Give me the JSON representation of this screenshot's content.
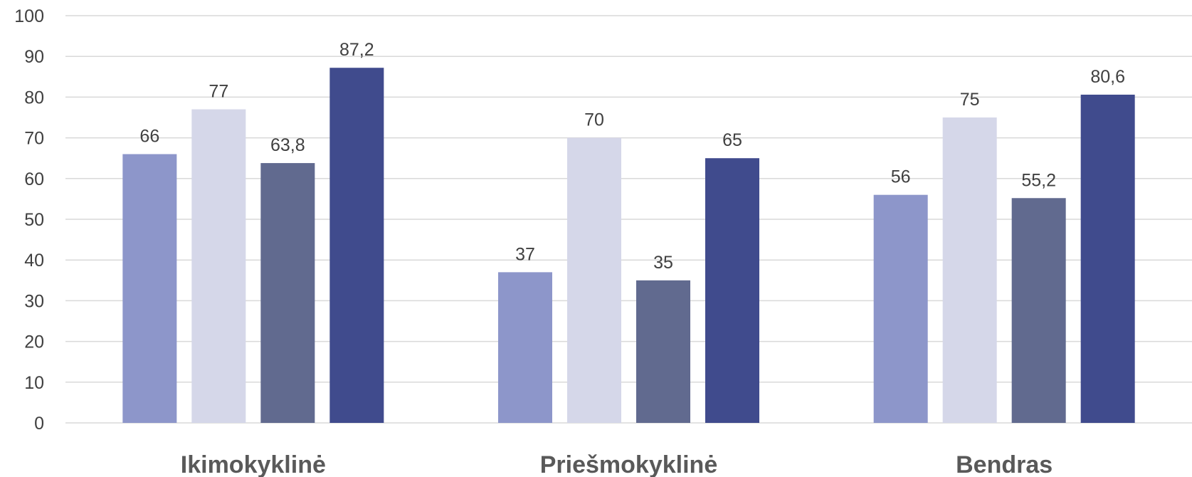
{
  "chart_data": {
    "type": "bar",
    "categories": [
      "Ikimokyklinė",
      "Priešmokyklinė",
      "Bendras"
    ],
    "series": [
      {
        "values": [
          66,
          37,
          56
        ],
        "labels": [
          "66",
          "37",
          "56"
        ],
        "color": "#8d96ca"
      },
      {
        "values": [
          77,
          70,
          75
        ],
        "labels": [
          "77",
          "70",
          "75"
        ],
        "color": "#d5d7e9"
      },
      {
        "values": [
          63.8,
          35,
          55.2
        ],
        "labels": [
          "63,8",
          "35",
          "55,2"
        ],
        "color": "#616a8f"
      },
      {
        "values": [
          87.2,
          65,
          80.6
        ],
        "labels": [
          "87,2",
          "65",
          "80,6"
        ],
        "color": "#404b8d"
      }
    ],
    "yticks": [
      "0",
      "10",
      "20",
      "30",
      "40",
      "50",
      "60",
      "70",
      "80",
      "90",
      "100"
    ],
    "ylim": [
      0,
      100
    ],
    "grid": true,
    "legend": "none"
  }
}
